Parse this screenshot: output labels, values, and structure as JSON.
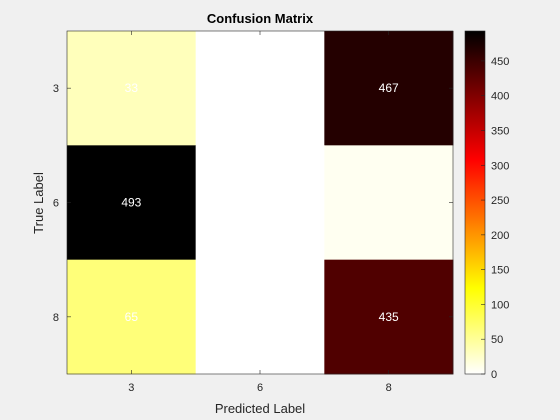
{
  "chart_data": {
    "type": "heatmap",
    "title": "Confusion Matrix",
    "xlabel": "Predicted Label",
    "ylabel": "True Label",
    "x_categories": [
      "3",
      "6",
      "8"
    ],
    "y_categories": [
      "3",
      "6",
      "8"
    ],
    "values": [
      [
        33,
        0,
        467
      ],
      [
        493,
        0,
        7
      ],
      [
        65,
        0,
        435
      ]
    ],
    "cell_labels": [
      [
        "33",
        "",
        "467"
      ],
      [
        "493",
        "",
        ""
      ],
      [
        "65",
        "",
        "435"
      ]
    ],
    "colormap": "hot (reversed)",
    "colorbar": {
      "range": [
        0,
        493
      ],
      "ticks": [
        0,
        50,
        100,
        150,
        200,
        250,
        300,
        350,
        400,
        450
      ]
    },
    "grid": false
  }
}
